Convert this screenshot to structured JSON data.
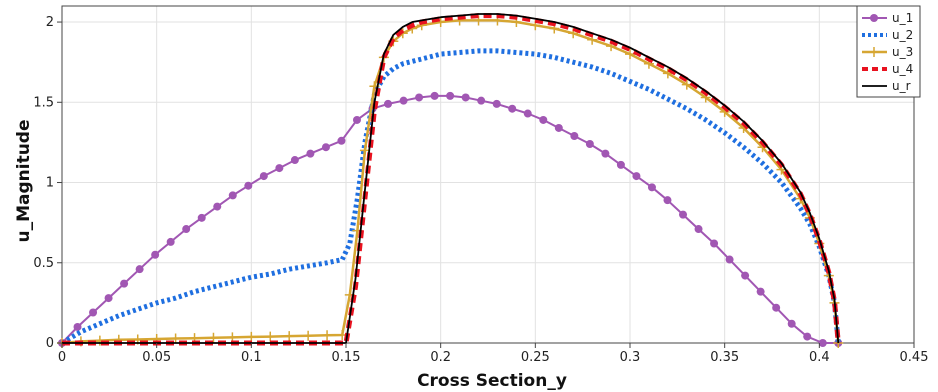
{
  "chart_data": {
    "type": "line",
    "title": "",
    "xlabel": "Cross Section_y",
    "ylabel": "u_Magnitude",
    "xlim": [
      0,
      0.45
    ],
    "ylim": [
      0,
      2.1
    ],
    "xticks": [
      "0",
      "0.05",
      "0.1",
      "0.15",
      "0.2",
      "0.25",
      "0.3",
      "0.35",
      "0.4",
      "0.45"
    ],
    "yticks": [
      "0",
      "0.5",
      "1",
      "1.5",
      "2"
    ],
    "grid": true,
    "legend_position": "top-right",
    "series": [
      {
        "name": "u_1",
        "color": "#a157b3",
        "style": "solid-circle-markers",
        "x": [
          0,
          0.0082,
          0.0164,
          0.0246,
          0.0328,
          0.041,
          0.0492,
          0.0574,
          0.0656,
          0.0738,
          0.082,
          0.0902,
          0.0984,
          0.1066,
          0.1148,
          0.123,
          0.1312,
          0.1394,
          0.1476,
          0.1558,
          0.164,
          0.1722,
          0.1804,
          0.1886,
          0.1968,
          0.205,
          0.2132,
          0.2214,
          0.2296,
          0.2378,
          0.246,
          0.2542,
          0.2624,
          0.2706,
          0.2788,
          0.287,
          0.2952,
          0.3034,
          0.3116,
          0.3198,
          0.328,
          0.3362,
          0.3444,
          0.3526,
          0.3608,
          0.369,
          0.3772,
          0.3854,
          0.3936,
          0.4018,
          0.41
        ],
        "y": [
          0,
          0.1,
          0.19,
          0.28,
          0.37,
          0.46,
          0.55,
          0.63,
          0.71,
          0.78,
          0.85,
          0.92,
          0.98,
          1.04,
          1.09,
          1.14,
          1.18,
          1.22,
          1.26,
          1.39,
          1.46,
          1.49,
          1.51,
          1.53,
          1.54,
          1.54,
          1.53,
          1.51,
          1.49,
          1.46,
          1.43,
          1.39,
          1.34,
          1.29,
          1.24,
          1.18,
          1.11,
          1.04,
          0.97,
          0.89,
          0.8,
          0.71,
          0.62,
          0.52,
          0.42,
          0.32,
          0.22,
          0.12,
          0.04,
          0.0,
          0
        ]
      },
      {
        "name": "u_2",
        "color": "#1f6fe0",
        "style": "dotted",
        "x": [
          0,
          0.01,
          0.02,
          0.03,
          0.04,
          0.05,
          0.06,
          0.07,
          0.08,
          0.09,
          0.1,
          0.11,
          0.12,
          0.13,
          0.14,
          0.148,
          0.152,
          0.156,
          0.16,
          0.165,
          0.17,
          0.175,
          0.18,
          0.19,
          0.2,
          0.21,
          0.22,
          0.23,
          0.24,
          0.25,
          0.26,
          0.27,
          0.28,
          0.29,
          0.3,
          0.31,
          0.32,
          0.33,
          0.34,
          0.35,
          0.36,
          0.37,
          0.38,
          0.39,
          0.395,
          0.4,
          0.405,
          0.408,
          0.41
        ],
        "y": [
          0,
          0.07,
          0.12,
          0.17,
          0.21,
          0.25,
          0.28,
          0.32,
          0.35,
          0.38,
          0.41,
          0.43,
          0.46,
          0.48,
          0.5,
          0.52,
          0.62,
          0.9,
          1.25,
          1.55,
          1.66,
          1.71,
          1.74,
          1.77,
          1.8,
          1.81,
          1.82,
          1.82,
          1.81,
          1.8,
          1.78,
          1.75,
          1.72,
          1.68,
          1.63,
          1.58,
          1.52,
          1.46,
          1.39,
          1.31,
          1.22,
          1.12,
          1.0,
          0.84,
          0.74,
          0.6,
          0.42,
          0.25,
          0
        ]
      },
      {
        "name": "u_3",
        "color": "#d6a632",
        "style": "solid-plus-markers",
        "x": [
          0,
          0.01,
          0.02,
          0.03,
          0.04,
          0.05,
          0.06,
          0.07,
          0.08,
          0.09,
          0.1,
          0.11,
          0.12,
          0.13,
          0.14,
          0.148,
          0.152,
          0.156,
          0.16,
          0.165,
          0.17,
          0.175,
          0.18,
          0.185,
          0.19,
          0.2,
          0.21,
          0.22,
          0.23,
          0.24,
          0.25,
          0.26,
          0.27,
          0.28,
          0.29,
          0.3,
          0.31,
          0.32,
          0.33,
          0.34,
          0.35,
          0.36,
          0.37,
          0.38,
          0.39,
          0.395,
          0.4,
          0.405,
          0.408,
          0.41
        ],
        "y": [
          0,
          0.01,
          0.015,
          0.02,
          0.022,
          0.025,
          0.028,
          0.03,
          0.033,
          0.035,
          0.038,
          0.04,
          0.043,
          0.045,
          0.048,
          0.05,
          0.3,
          0.7,
          1.2,
          1.6,
          1.78,
          1.88,
          1.93,
          1.96,
          1.98,
          2.0,
          2.01,
          2.01,
          2.01,
          2.0,
          1.98,
          1.96,
          1.93,
          1.89,
          1.85,
          1.8,
          1.74,
          1.68,
          1.61,
          1.53,
          1.44,
          1.34,
          1.22,
          1.08,
          0.9,
          0.78,
          0.62,
          0.42,
          0.25,
          0
        ]
      },
      {
        "name": "u_4",
        "color": "#e8121f",
        "style": "dashed",
        "x": [
          0,
          0.05,
          0.1,
          0.15,
          0.155,
          0.16,
          0.165,
          0.17,
          0.175,
          0.18,
          0.185,
          0.19,
          0.2,
          0.21,
          0.22,
          0.23,
          0.24,
          0.25,
          0.26,
          0.27,
          0.28,
          0.29,
          0.3,
          0.31,
          0.32,
          0.33,
          0.34,
          0.35,
          0.36,
          0.37,
          0.38,
          0.39,
          0.395,
          0.4,
          0.405,
          0.408,
          0.41
        ],
        "y": [
          0,
          0,
          0,
          0,
          0.35,
          0.9,
          1.45,
          1.78,
          1.9,
          1.95,
          1.98,
          2.0,
          2.02,
          2.03,
          2.04,
          2.04,
          2.03,
          2.01,
          1.99,
          1.96,
          1.92,
          1.88,
          1.83,
          1.77,
          1.71,
          1.64,
          1.56,
          1.47,
          1.37,
          1.25,
          1.11,
          0.93,
          0.8,
          0.64,
          0.44,
          0.26,
          0
        ]
      },
      {
        "name": "u_r",
        "color": "#000000",
        "style": "solid",
        "x": [
          0,
          0.05,
          0.1,
          0.15,
          0.155,
          0.16,
          0.165,
          0.17,
          0.175,
          0.18,
          0.185,
          0.19,
          0.2,
          0.21,
          0.22,
          0.23,
          0.24,
          0.25,
          0.26,
          0.27,
          0.28,
          0.29,
          0.3,
          0.31,
          0.32,
          0.33,
          0.34,
          0.35,
          0.36,
          0.37,
          0.38,
          0.39,
          0.395,
          0.4,
          0.405,
          0.408,
          0.41
        ],
        "y": [
          0,
          0,
          0,
          0,
          0.4,
          0.95,
          1.5,
          1.8,
          1.92,
          1.97,
          2.0,
          2.01,
          2.03,
          2.04,
          2.05,
          2.05,
          2.04,
          2.02,
          2.0,
          1.97,
          1.93,
          1.89,
          1.84,
          1.78,
          1.72,
          1.65,
          1.57,
          1.48,
          1.38,
          1.26,
          1.12,
          0.94,
          0.81,
          0.65,
          0.45,
          0.27,
          0
        ]
      }
    ]
  }
}
